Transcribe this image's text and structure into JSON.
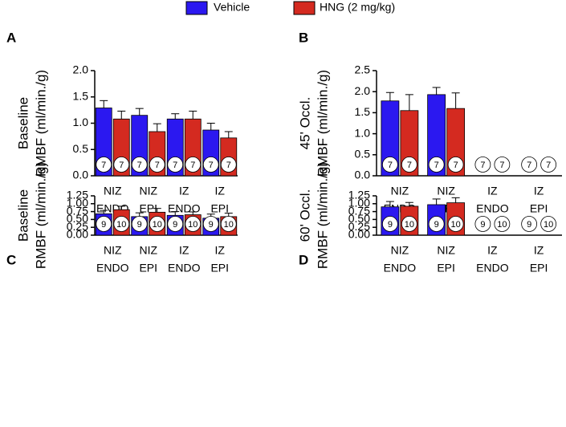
{
  "legend": [
    {
      "name": "Vehicle",
      "color": "#2b18f0"
    },
    {
      "name": "HNG (2 mg/kg)",
      "color": "#d42a20"
    }
  ],
  "chart_data": [
    {
      "type": "bar",
      "title": "A",
      "y_label": [
        "Baseline",
        "RMBF (ml/min./g)"
      ],
      "categories": [
        [
          "NIZ",
          "ENDO"
        ],
        [
          "NIZ",
          "EPI"
        ],
        [
          "IZ",
          "ENDO"
        ],
        [
          "IZ",
          "EPI"
        ]
      ],
      "series": [
        {
          "values": [
            1.29,
            1.15,
            1.08,
            0.87
          ],
          "errors": [
            0.14,
            0.13,
            0.1,
            0.13
          ],
          "n": [
            7,
            7,
            7,
            7
          ]
        },
        {
          "values": [
            1.08,
            0.84,
            1.08,
            0.72
          ],
          "errors": [
            0.15,
            0.15,
            0.15,
            0.12
          ],
          "n": [
            7,
            7,
            7,
            7
          ]
        }
      ],
      "ylim": [
        0,
        2
      ],
      "yticks": [
        {
          "value": 0,
          "label": "0.0"
        },
        0.5,
        {
          "value": 1,
          "label": "1.0"
        },
        1.5,
        {
          "value": 2,
          "label": "2.0"
        }
      ]
    },
    {
      "type": "bar",
      "title": "B",
      "y_label": [
        "45' Occl.",
        "RMBF (ml/min./g)"
      ],
      "categories": [
        [
          "NIZ",
          "ENDO"
        ],
        [
          "NIZ",
          "EPI"
        ],
        [
          "IZ",
          "ENDO"
        ],
        [
          "IZ",
          "EPI"
        ]
      ],
      "series": [
        {
          "values": [
            1.78,
            1.93,
            null,
            null
          ],
          "errors": [
            0.2,
            0.17,
            null,
            null
          ],
          "n": [
            7,
            7,
            7,
            7
          ]
        },
        {
          "values": [
            1.55,
            1.6,
            null,
            null
          ],
          "errors": [
            0.38,
            0.37,
            null,
            null
          ],
          "n": [
            7,
            7,
            7,
            7
          ]
        }
      ],
      "ylim": [
        0,
        2.5
      ],
      "yticks": [
        {
          "value": 0,
          "label": "0.0"
        },
        0.5,
        {
          "value": 1,
          "label": "1.0"
        },
        1.5,
        {
          "value": 2,
          "label": "2.0"
        },
        2.5
      ]
    },
    {
      "type": "bar",
      "title": "C",
      "y_label": [
        "Baseline",
        "RMBF (ml/min./g)"
      ],
      "categories": [
        [
          "NIZ",
          "ENDO"
        ],
        [
          "NIZ",
          "EPI"
        ],
        [
          "IZ",
          "ENDO"
        ],
        [
          "IZ",
          "EPI"
        ]
      ],
      "series": [
        {
          "values": [
            0.68,
            0.59,
            0.63,
            0.54
          ],
          "errors": [
            0.11,
            0.12,
            0.12,
            0.13
          ],
          "n": [
            9,
            9,
            9,
            9
          ]
        },
        {
          "values": [
            0.81,
            0.73,
            0.65,
            0.59
          ],
          "errors": [
            0.11,
            0.12,
            0.09,
            0.11
          ],
          "n": [
            10,
            10,
            10,
            10
          ]
        }
      ],
      "ylim": [
        0,
        1.25
      ],
      "yticks": [
        {
          "value": 0,
          "label": "0.00"
        },
        0.25,
        {
          "value": 0.5,
          "label": "0.50"
        },
        0.75,
        {
          "value": 1,
          "label": "1.00"
        },
        1.25
      ]
    },
    {
      "type": "bar",
      "title": "D",
      "y_label": [
        "60' Occl.",
        "RMBF (ml/min./g)"
      ],
      "categories": [
        [
          "NIZ",
          "ENDO"
        ],
        [
          "NIZ",
          "EPI"
        ],
        [
          "IZ",
          "ENDO"
        ],
        [
          "IZ",
          "EPI"
        ]
      ],
      "series": [
        {
          "values": [
            0.9,
            0.97,
            null,
            null
          ],
          "errors": [
            0.17,
            0.18,
            null,
            null
          ],
          "n": [
            9,
            9,
            9,
            9
          ]
        },
        {
          "values": [
            0.92,
            1.03,
            null,
            null
          ],
          "errors": [
            0.12,
            0.16,
            null,
            null
          ],
          "n": [
            10,
            10,
            10,
            10
          ]
        }
      ],
      "ylim": [
        0,
        1.25
      ],
      "yticks": [
        {
          "value": 0,
          "label": "0.00"
        },
        0.25,
        {
          "value": 0.5,
          "label": "0.50"
        },
        0.75,
        {
          "value": 1,
          "label": "1.00"
        },
        1.25
      ]
    }
  ]
}
